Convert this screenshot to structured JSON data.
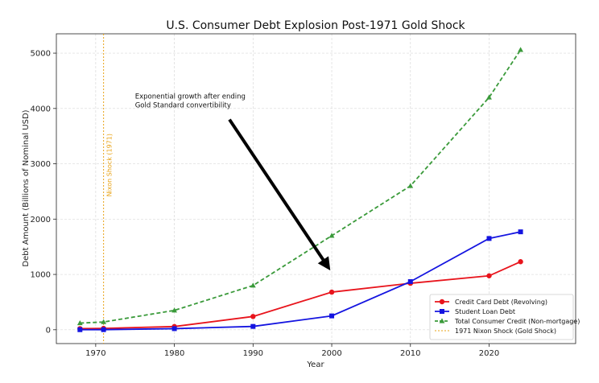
{
  "chart_data": {
    "type": "line",
    "title": "U.S. Consumer Debt Explosion Post-1971 Gold Shock",
    "xlabel": "Year",
    "ylabel": "Debt Amount (Billions of Nominal USD)",
    "xlim": [
      1965,
      2031
    ],
    "ylim": [
      -250,
      5350
    ],
    "xticks": [
      1970,
      1980,
      1990,
      2000,
      2010,
      2020
    ],
    "yticks": [
      0,
      1000,
      2000,
      3000,
      4000,
      5000
    ],
    "grid": true,
    "legend_position": "lower-right",
    "series": [
      {
        "name": "Credit Card Debt (Revolving)",
        "color": "#e8141c",
        "marker": "circle",
        "style": "solid",
        "x": [
          1968,
          1971,
          1980,
          1990,
          2000,
          2010,
          2020,
          2024
        ],
        "y": [
          20,
          25,
          58,
          240,
          680,
          840,
          975,
          1230
        ]
      },
      {
        "name": "Student Loan Debt",
        "color": "#1414e0",
        "marker": "square",
        "style": "solid",
        "x": [
          1968,
          1971,
          1980,
          1990,
          2000,
          2010,
          2020,
          2024
        ],
        "y": [
          1,
          2,
          20,
          60,
          250,
          870,
          1650,
          1770
        ]
      },
      {
        "name": "Total Consumer Credit (Non-mortgage)",
        "color": "#3a9a3a",
        "marker": "triangle",
        "style": "dashed",
        "x": [
          1968,
          1971,
          1980,
          1990,
          2000,
          2010,
          2020,
          2024
        ],
        "y": [
          120,
          140,
          350,
          800,
          1700,
          2600,
          4200,
          5060
        ]
      }
    ],
    "vline": {
      "x": 1971,
      "label": "Nixon Shock (1971)",
      "legend": "1971 Nixon Shock (Gold Shock)",
      "color": "#e8a317"
    },
    "annotation": {
      "lines": [
        "Exponential growth after ending",
        "Gold Standard convertibility"
      ],
      "text_at": [
        1975,
        4150
      ],
      "arrow_from": [
        1987,
        3800
      ],
      "arrow_to": [
        1999.5,
        1140
      ]
    }
  }
}
